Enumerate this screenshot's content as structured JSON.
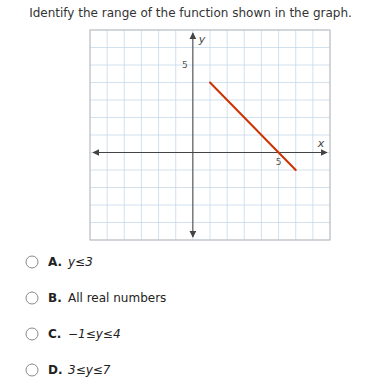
{
  "chart_data": {
    "type": "line",
    "title": "Identify the range of the function shown in the graph.",
    "x": [
      1,
      6
    ],
    "values": [
      4,
      -1
    ],
    "color": "#cc3300",
    "xlim": [
      -6,
      8
    ],
    "ylim": [
      -5,
      7
    ],
    "xticks": [
      -6,
      -5,
      -4,
      -3,
      -2,
      -1,
      0,
      1,
      2,
      3,
      4,
      5,
      6,
      7,
      8
    ],
    "yticks": [
      -5,
      -4,
      -3,
      -2,
      -1,
      0,
      1,
      2,
      3,
      4,
      5,
      6,
      7
    ],
    "grid": true,
    "tick_labels": false,
    "x_label": "x",
    "y_label": "y",
    "annotations": [
      {
        "text": "5",
        "x": 5,
        "y": 0
      },
      {
        "text": "5",
        "x": 0,
        "y": 5
      }
    ],
    "choices": [
      {
        "label": "A.",
        "text": "y≤3"
      },
      {
        "label": "B.",
        "text": "All real numbers"
      },
      {
        "label": "C.",
        "text": "−1≤y≤4"
      },
      {
        "label": "D.",
        "text": "3≤y≤7"
      }
    ]
  }
}
